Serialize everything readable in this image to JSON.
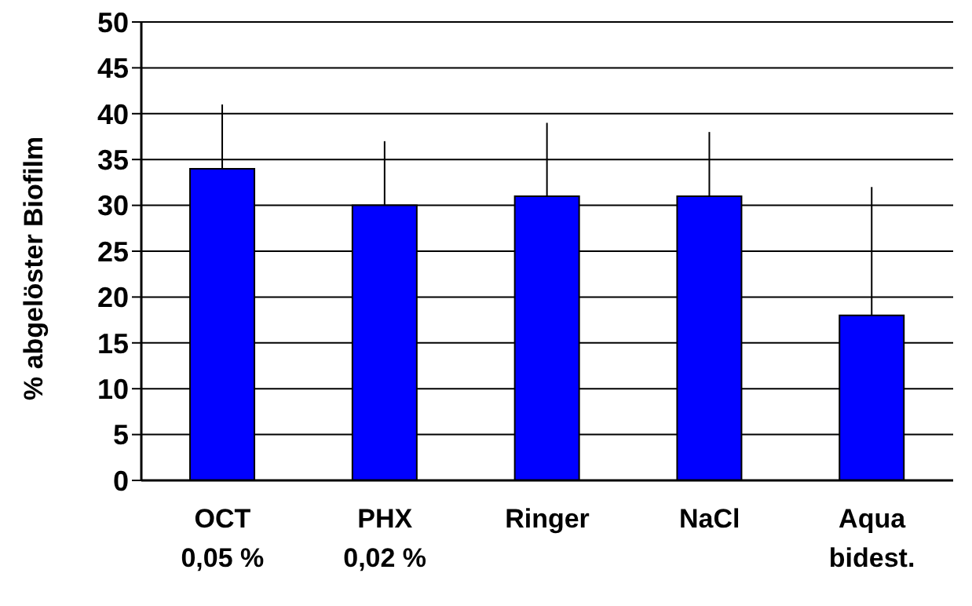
{
  "chart_data": {
    "type": "bar",
    "ylabel": "% abgelöster Biofilm",
    "categories": [
      "OCT\n0,05 %",
      "PHX\n0,02 %",
      "Ringer",
      "NaCl",
      "Aqua\nbidest."
    ],
    "values": [
      34,
      30,
      31,
      31,
      18
    ],
    "errors": [
      [
        34,
        41
      ],
      [
        30,
        37
      ],
      [
        31,
        39
      ],
      [
        31,
        38
      ],
      [
        18,
        32
      ]
    ],
    "color": "#0000ff",
    "ylim": [
      0,
      50
    ],
    "yticks": [
      0,
      5,
      10,
      15,
      20,
      25,
      30,
      35,
      40,
      45,
      50
    ],
    "grid": "y",
    "legend": false
  }
}
